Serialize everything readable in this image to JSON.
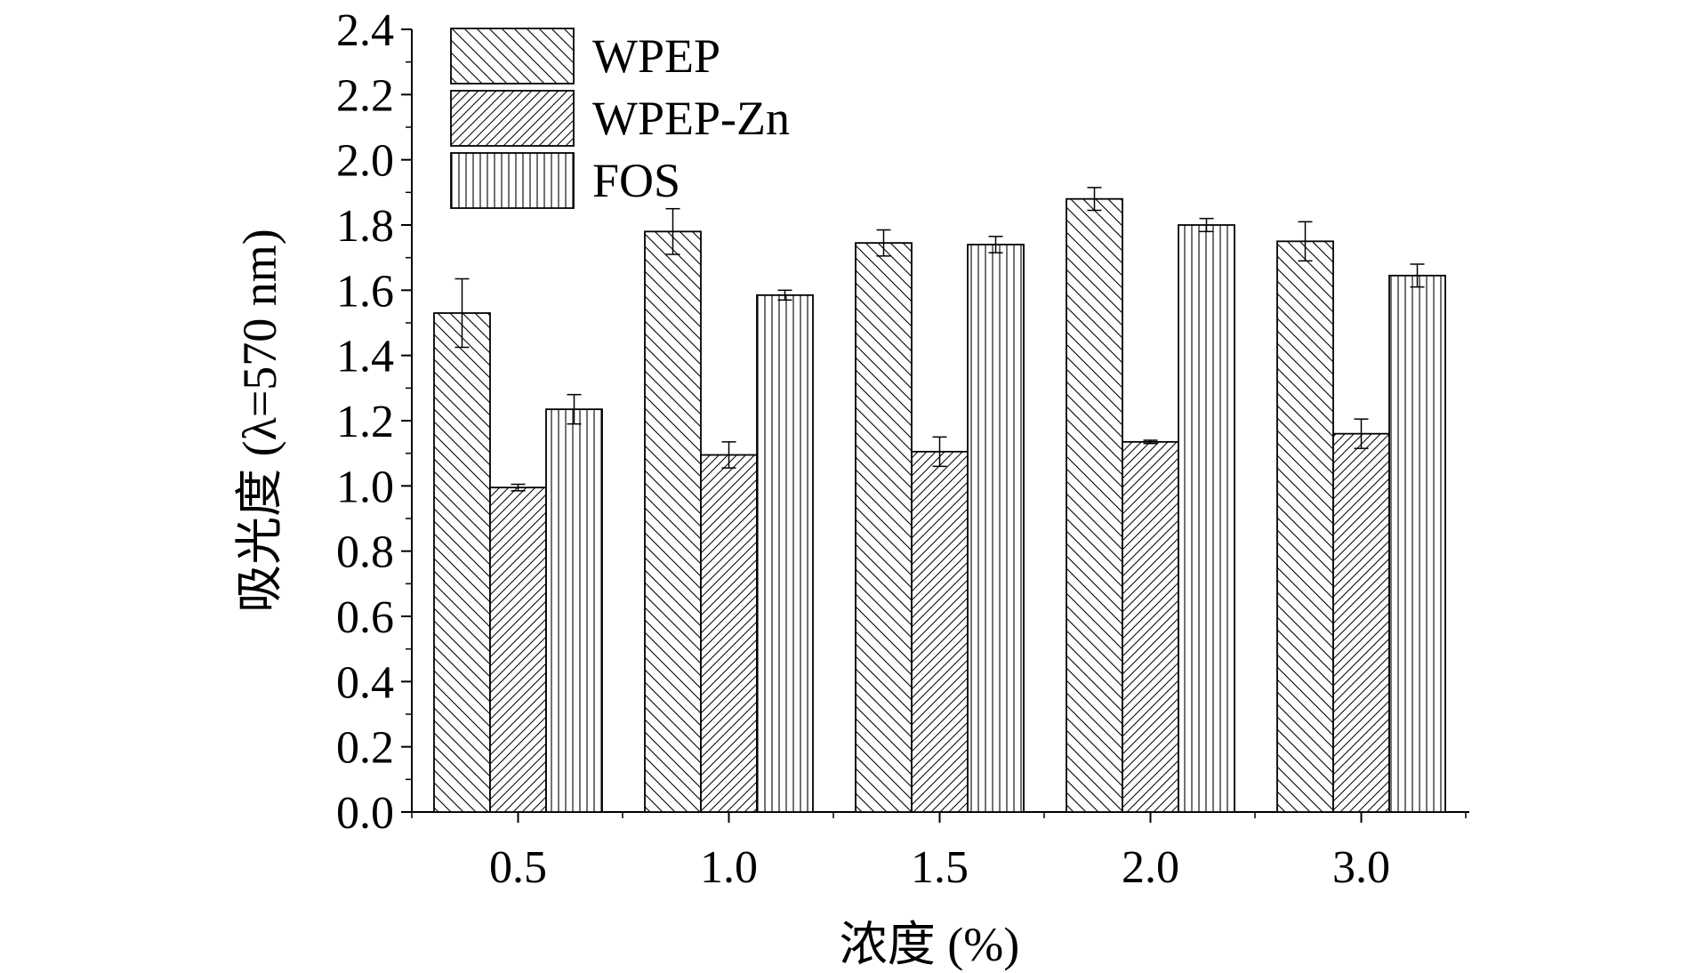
{
  "chart_data": {
    "type": "bar",
    "xlabel": "浓度 (%)",
    "ylabel": "吸光度 (λ=570 nm)",
    "ylim": [
      0,
      2.4
    ],
    "yticks": [
      "0.0",
      "0.2",
      "0.4",
      "0.6",
      "0.8",
      "1.0",
      "1.2",
      "1.4",
      "1.6",
      "1.8",
      "2.0",
      "2.2",
      "2.4"
    ],
    "categories": [
      "0.5",
      "1.0",
      "1.5",
      "2.0",
      "3.0"
    ],
    "grid": false,
    "legend_position": "top-left",
    "series": [
      {
        "name": "WPEP",
        "pattern": "backslash",
        "values": [
          1.53,
          1.78,
          1.745,
          1.88,
          1.75
        ],
        "errors": [
          0.105,
          0.07,
          0.04,
          0.035,
          0.06
        ]
      },
      {
        "name": "WPEP-Zn",
        "pattern": "slash",
        "values": [
          0.995,
          1.095,
          1.105,
          1.135,
          1.16
        ],
        "errors": [
          0.01,
          0.04,
          0.045,
          0.005,
          0.045
        ]
      },
      {
        "name": "FOS",
        "pattern": "vertical",
        "values": [
          1.235,
          1.585,
          1.74,
          1.8,
          1.645
        ],
        "errors": [
          0.045,
          0.015,
          0.025,
          0.02,
          0.035
        ]
      }
    ]
  }
}
